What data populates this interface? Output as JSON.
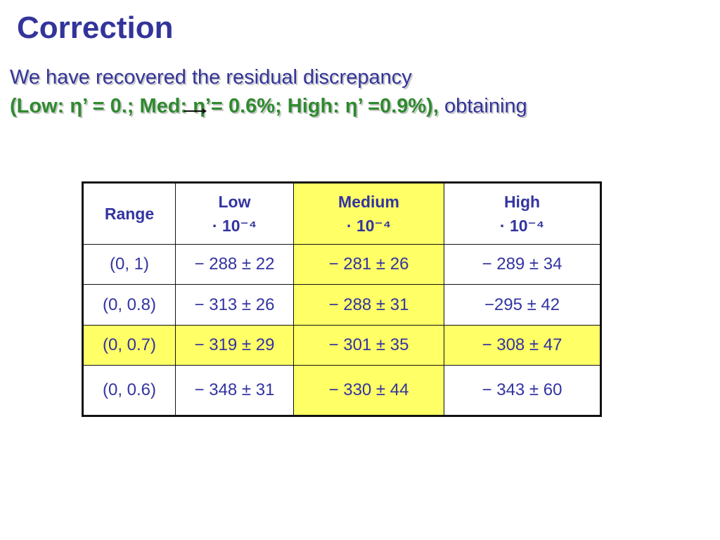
{
  "title": "Correction",
  "subtitle": {
    "line1": "We have recovered the residual discrepancy",
    "line2_green": "(Low: η’ = 0.; Med: η’= 0.6%; High: η’ =0.9%),",
    "line2_plain": " obtaining"
  },
  "table": {
    "headers": [
      {
        "label": "Range",
        "unit": ""
      },
      {
        "label": "Low",
        "unit": "· 10⁻⁴"
      },
      {
        "label": "Medium",
        "unit": "· 10⁻⁴"
      },
      {
        "label": "High",
        "unit": "· 10⁻⁴"
      }
    ],
    "rows": [
      {
        "range": "(0, 1)",
        "low": "− 288 ± 22",
        "medium": "− 281 ± 26",
        "high": "− 289 ± 34"
      },
      {
        "range": "(0, 0.8)",
        "low": "− 313 ± 26",
        "medium": "− 288 ± 31",
        "high": "−295 ± 42"
      },
      {
        "range": "(0, 0.7)",
        "low": "− 319 ± 29",
        "medium": "− 301 ± 35",
        "high": "− 308 ± 47"
      },
      {
        "range": "(0, 0.6)",
        "low": "− 348 ± 31",
        "medium": "− 330 ± 44",
        "high": "− 343 ± 60"
      }
    ]
  },
  "colors": {
    "title": "#33349a",
    "highlight_text": "#2f8a2f",
    "highlight_cell": "#ffff66"
  }
}
